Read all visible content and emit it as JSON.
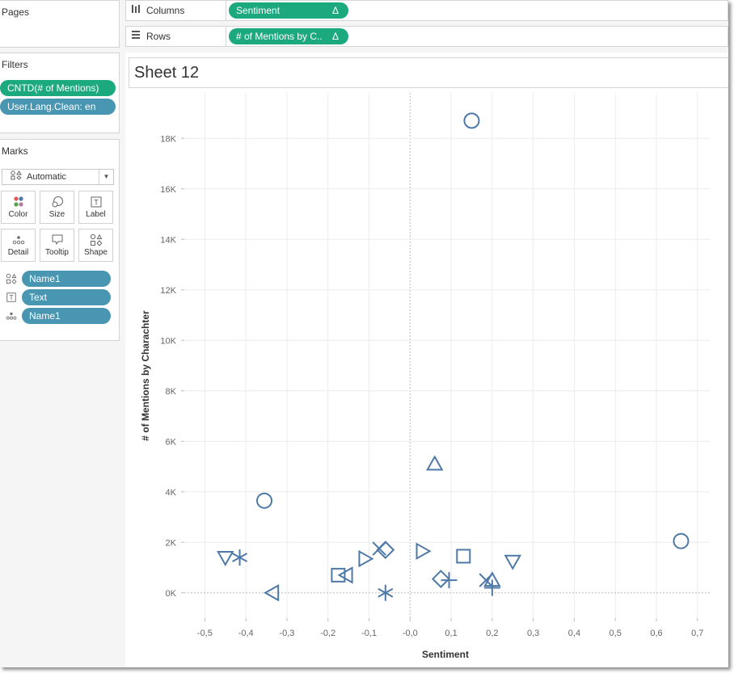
{
  "pages": {
    "title": "Pages"
  },
  "filters": {
    "title": "Filters",
    "items": [
      {
        "label": "CNTD(# of Mentions)",
        "color": "#1ca97e"
      },
      {
        "label": "User.Lang.Clean: en",
        "color": "#4996b2"
      }
    ]
  },
  "marks": {
    "title": "Marks",
    "mark_type": "Automatic",
    "buttons": [
      {
        "label": "Color",
        "icon": "color-dots-icon"
      },
      {
        "label": "Size",
        "icon": "size-circles-icon"
      },
      {
        "label": "Label",
        "icon": "label-t-icon"
      },
      {
        "label": "Detail",
        "icon": "detail-dots-icon"
      },
      {
        "label": "Tooltip",
        "icon": "tooltip-bubble-icon"
      },
      {
        "label": "Shape",
        "icon": "shape-icon"
      }
    ],
    "fields": [
      {
        "label": "Name1",
        "icon": "shape-icon"
      },
      {
        "label": "Text",
        "icon": "label-t-icon"
      },
      {
        "label": "Name1",
        "icon": "detail-dots-icon"
      }
    ]
  },
  "shelves": {
    "columns": {
      "label": "Columns",
      "pill": "Sentiment",
      "delta": "Δ"
    },
    "rows": {
      "label": "Rows",
      "pill": "# of Mentions by C..",
      "delta": "Δ"
    }
  },
  "sheet": {
    "title": "Sheet 12"
  },
  "chart_data": {
    "type": "scatter",
    "xlabel": "Sentiment",
    "ylabel": "# of Mentions by Charachter",
    "xlim": [
      -0.55,
      0.73
    ],
    "ylim": [
      -1000,
      19800
    ],
    "x_ticks": [
      -0.5,
      -0.4,
      -0.3,
      -0.2,
      -0.1,
      0.0,
      0.1,
      0.2,
      0.3,
      0.4,
      0.5,
      0.6,
      0.7
    ],
    "x_tick_labels": [
      "-0,5",
      "-0,4",
      "-0,3",
      "-0,2",
      "-0,1",
      "-0,0",
      "0,1",
      "0,2",
      "0,3",
      "0,4",
      "0,5",
      "0,6",
      "0,7"
    ],
    "y_ticks": [
      0,
      2000,
      4000,
      6000,
      8000,
      10000,
      12000,
      14000,
      16000,
      18000
    ],
    "y_tick_labels": [
      "0K",
      "2K",
      "4K",
      "6K",
      "8K",
      "10K",
      "12K",
      "14K",
      "16K",
      "18K"
    ],
    "grid": true,
    "mark_color": "#4e79a7",
    "points": [
      {
        "x": 0.15,
        "y": 18700,
        "shape": "circle"
      },
      {
        "x": 0.06,
        "y": 5100,
        "shape": "triangle-up"
      },
      {
        "x": -0.355,
        "y": 3650,
        "shape": "circle"
      },
      {
        "x": 0.66,
        "y": 2050,
        "shape": "circle"
      },
      {
        "x": -0.45,
        "y": 1400,
        "shape": "triangle-down"
      },
      {
        "x": -0.415,
        "y": 1400,
        "shape": "asterisk"
      },
      {
        "x": -0.335,
        "y": 0,
        "shape": "triangle-left"
      },
      {
        "x": -0.175,
        "y": 700,
        "shape": "square"
      },
      {
        "x": -0.155,
        "y": 700,
        "shape": "triangle-left"
      },
      {
        "x": -0.11,
        "y": 1350,
        "shape": "triangle-right"
      },
      {
        "x": -0.075,
        "y": 1750,
        "shape": "x"
      },
      {
        "x": -0.06,
        "y": 1700,
        "shape": "diamond"
      },
      {
        "x": -0.06,
        "y": 0,
        "shape": "asterisk"
      },
      {
        "x": 0.03,
        "y": 1650,
        "shape": "triangle-right"
      },
      {
        "x": 0.13,
        "y": 1450,
        "shape": "square"
      },
      {
        "x": 0.25,
        "y": 1250,
        "shape": "triangle-down"
      },
      {
        "x": 0.075,
        "y": 550,
        "shape": "diamond"
      },
      {
        "x": 0.095,
        "y": 500,
        "shape": "plus"
      },
      {
        "x": 0.185,
        "y": 500,
        "shape": "x"
      },
      {
        "x": 0.2,
        "y": 500,
        "shape": "triangle-up"
      },
      {
        "x": 0.2,
        "y": 200,
        "shape": "plus"
      }
    ]
  }
}
